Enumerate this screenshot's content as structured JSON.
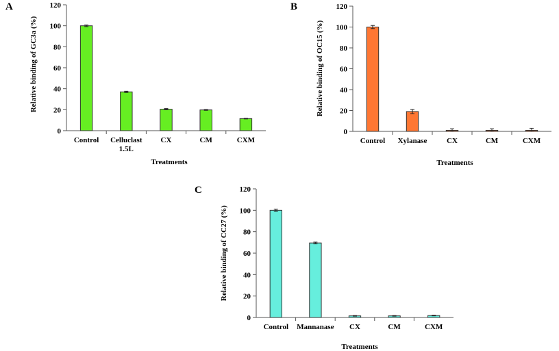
{
  "chart_data": [
    {
      "panel": "A",
      "type": "bar",
      "categories": [
        "Control",
        [
          "Celluclast",
          "1.5L"
        ],
        "CX",
        "CM",
        "CXM"
      ],
      "values": [
        100,
        37,
        20.5,
        19.8,
        11.5
      ],
      "errors": [
        0.8,
        0.6,
        0.6,
        0.4,
        0.3
      ],
      "ylabel": "Relative binding of GC3a (%)",
      "xlabel": "Treatments",
      "ylim": [
        0,
        120
      ],
      "yticks": [
        "0",
        "20",
        "40",
        "60",
        "80",
        "100",
        "120"
      ],
      "color": "#66ee22"
    },
    {
      "panel": "B",
      "type": "bar",
      "categories": [
        "Control",
        "Xylanase",
        "CX",
        "CM",
        "CXM"
      ],
      "values": [
        100,
        19,
        1,
        1,
        1
      ],
      "errors": [
        1.5,
        2,
        1.5,
        1.5,
        2
      ],
      "ylabel": "Relative binding of OC15 (%)",
      "xlabel": "Treatments",
      "ylim": [
        0,
        120
      ],
      "yticks": [
        "0",
        "20",
        "40",
        "60",
        "80",
        "100",
        "120"
      ],
      "color": "#ff7733"
    },
    {
      "panel": "C",
      "type": "bar",
      "categories": [
        "Control",
        "Mannanase",
        "CX",
        "CM",
        "CXM"
      ],
      "values": [
        100,
        69.5,
        1.5,
        1.5,
        1.8
      ],
      "errors": [
        1,
        0.8,
        0.3,
        0.3,
        0.3
      ],
      "ylabel": "Relative binding of CC27 (%)",
      "xlabel": "Treatments",
      "ylim": [
        0,
        120
      ],
      "yticks": [
        "0",
        "20",
        "40",
        "60",
        "80",
        "100",
        "120"
      ],
      "color": "#66eedd"
    }
  ]
}
